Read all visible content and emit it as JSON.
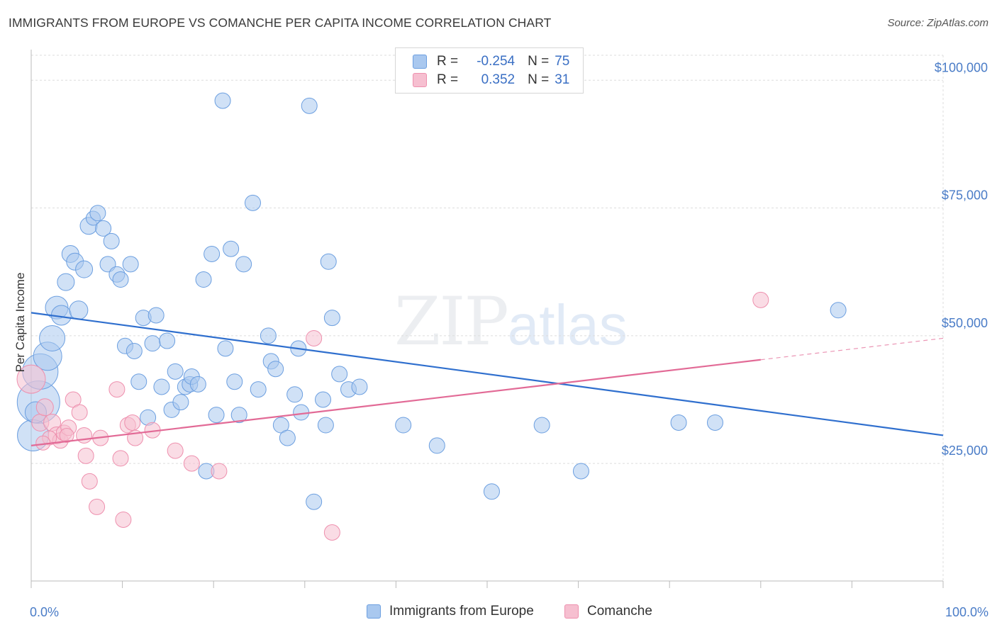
{
  "header": {
    "title": "IMMIGRANTS FROM EUROPE VS COMANCHE PER CAPITA INCOME CORRELATION CHART",
    "source": "Source: ZipAtlas.com"
  },
  "watermark": {
    "zip": "ZIP",
    "atlas": "atlas"
  },
  "legend": {
    "rows": [
      {
        "r_label": "R =",
        "r_value": "-0.254",
        "n_label": "N =",
        "n_value": "75"
      },
      {
        "r_label": "R =",
        "r_value": "0.352",
        "n_label": "N =",
        "n_value": "31"
      }
    ]
  },
  "bottom_legend": {
    "europe": "Immigrants from Europe",
    "comanche": "Comanche"
  },
  "colors": {
    "europe_fill": "#a9c8ef",
    "europe_stroke": "#6c9fe0",
    "europe_line": "#2f6fce",
    "comanche_fill": "#f6bfd0",
    "comanche_stroke": "#ee90ae",
    "comanche_line": "#e26a96",
    "tick_text": "#4a7cc7",
    "grid": "#dddddd"
  },
  "chart_data": {
    "type": "scatter",
    "title": "IMMIGRANTS FROM EUROPE VS COMANCHE PER CAPITA INCOME CORRELATION CHART",
    "xlabel": "",
    "ylabel": "Per Capita Income",
    "xlim": [
      0,
      100
    ],
    "ylim": [
      2000,
      106000
    ],
    "x_tick_labels": [
      {
        "value": 0,
        "label": "0.0%"
      },
      {
        "value": 100,
        "label": "100.0%"
      }
    ],
    "y_ticks": [
      {
        "value": 25000,
        "label": "$25,000"
      },
      {
        "value": 50000,
        "label": "$50,000"
      },
      {
        "value": 75000,
        "label": "$75,000"
      },
      {
        "value": 100000,
        "label": "$100,000"
      }
    ],
    "grid": true,
    "legend_position": "top-center",
    "series": [
      {
        "name": "Immigrants from Europe",
        "color": "#a9c8ef",
        "trend": {
          "x0": 0,
          "y0": 54500,
          "x1": 100,
          "y1": 30500,
          "dashed_from": null
        },
        "points": [
          {
            "x": 0.8,
            "y": 37000,
            "s": 3
          },
          {
            "x": 1.0,
            "y": 43000,
            "s": 2.5
          },
          {
            "x": 1.8,
            "y": 46000,
            "s": 2
          },
          {
            "x": 2.3,
            "y": 49500,
            "s": 1.8
          },
          {
            "x": 2.8,
            "y": 55500,
            "s": 1.6
          },
          {
            "x": 3.3,
            "y": 54000,
            "s": 1.4
          },
          {
            "x": 3.8,
            "y": 60500,
            "s": 1.2
          },
          {
            "x": 4.3,
            "y": 66000,
            "s": 1.2
          },
          {
            "x": 4.8,
            "y": 64500,
            "s": 1.2
          },
          {
            "x": 5.2,
            "y": 55000,
            "s": 1.3
          },
          {
            "x": 5.8,
            "y": 63000,
            "s": 1.2
          },
          {
            "x": 6.3,
            "y": 71500,
            "s": 1.2
          },
          {
            "x": 6.8,
            "y": 73000,
            "s": 1
          },
          {
            "x": 7.3,
            "y": 74000,
            "s": 1.1
          },
          {
            "x": 7.9,
            "y": 71000,
            "s": 1.1
          },
          {
            "x": 8.4,
            "y": 64000,
            "s": 1.1
          },
          {
            "x": 8.8,
            "y": 68500,
            "s": 1.1
          },
          {
            "x": 9.4,
            "y": 62000,
            "s": 1.1
          },
          {
            "x": 9.8,
            "y": 61000,
            "s": 1.1
          },
          {
            "x": 10.3,
            "y": 48000,
            "s": 1.1
          },
          {
            "x": 10.9,
            "y": 64000,
            "s": 1.1
          },
          {
            "x": 11.3,
            "y": 47000,
            "s": 1.1
          },
          {
            "x": 11.8,
            "y": 41000,
            "s": 1.1
          },
          {
            "x": 12.3,
            "y": 53500,
            "s": 1.1
          },
          {
            "x": 12.8,
            "y": 34000,
            "s": 1.1
          },
          {
            "x": 13.3,
            "y": 48500,
            "s": 1.1
          },
          {
            "x": 13.7,
            "y": 54000,
            "s": 1.1
          },
          {
            "x": 14.3,
            "y": 40000,
            "s": 1.1
          },
          {
            "x": 14.9,
            "y": 49000,
            "s": 1.1
          },
          {
            "x": 15.4,
            "y": 35500,
            "s": 1.1
          },
          {
            "x": 15.8,
            "y": 43000,
            "s": 1.1
          },
          {
            "x": 16.4,
            "y": 37000,
            "s": 1.1
          },
          {
            "x": 16.9,
            "y": 40000,
            "s": 1.1
          },
          {
            "x": 17.4,
            "y": 40500,
            "s": 1.1
          },
          {
            "x": 17.6,
            "y": 42000,
            "s": 1.1
          },
          {
            "x": 18.3,
            "y": 40500,
            "s": 1.1
          },
          {
            "x": 18.9,
            "y": 61000,
            "s": 1.1
          },
          {
            "x": 19.2,
            "y": 23500,
            "s": 1.1
          },
          {
            "x": 19.8,
            "y": 66000,
            "s": 1.1
          },
          {
            "x": 20.3,
            "y": 34500,
            "s": 1.1
          },
          {
            "x": 21.0,
            "y": 96000,
            "s": 1.1
          },
          {
            "x": 21.3,
            "y": 47500,
            "s": 1.1
          },
          {
            "x": 21.9,
            "y": 67000,
            "s": 1.1
          },
          {
            "x": 22.3,
            "y": 41000,
            "s": 1.1
          },
          {
            "x": 22.8,
            "y": 34500,
            "s": 1.1
          },
          {
            "x": 23.3,
            "y": 64000,
            "s": 1.1
          },
          {
            "x": 24.3,
            "y": 76000,
            "s": 1.1
          },
          {
            "x": 24.9,
            "y": 39500,
            "s": 1.1
          },
          {
            "x": 26.0,
            "y": 50000,
            "s": 1.1
          },
          {
            "x": 26.3,
            "y": 45000,
            "s": 1.1
          },
          {
            "x": 26.8,
            "y": 43500,
            "s": 1.1
          },
          {
            "x": 27.4,
            "y": 32500,
            "s": 1.1
          },
          {
            "x": 28.1,
            "y": 30000,
            "s": 1.1
          },
          {
            "x": 28.9,
            "y": 38500,
            "s": 1.1
          },
          {
            "x": 29.3,
            "y": 47500,
            "s": 1.1
          },
          {
            "x": 29.6,
            "y": 35000,
            "s": 1.1
          },
          {
            "x": 30.5,
            "y": 95000,
            "s": 1.1
          },
          {
            "x": 31.0,
            "y": 17500,
            "s": 1.1
          },
          {
            "x": 32.0,
            "y": 37500,
            "s": 1.1
          },
          {
            "x": 32.3,
            "y": 32500,
            "s": 1.1
          },
          {
            "x": 32.6,
            "y": 64500,
            "s": 1.1
          },
          {
            "x": 33.0,
            "y": 53500,
            "s": 1.1
          },
          {
            "x": 33.8,
            "y": 42500,
            "s": 1.1
          },
          {
            "x": 34.8,
            "y": 39500,
            "s": 1.1
          },
          {
            "x": 36.0,
            "y": 40000,
            "s": 1.1
          },
          {
            "x": 40.8,
            "y": 32500,
            "s": 1.1
          },
          {
            "x": 44.5,
            "y": 28500,
            "s": 1.1
          },
          {
            "x": 50.5,
            "y": 19500,
            "s": 1.1
          },
          {
            "x": 56.0,
            "y": 32500,
            "s": 1.1
          },
          {
            "x": 60.3,
            "y": 23500,
            "s": 1.1
          },
          {
            "x": 71.0,
            "y": 33000,
            "s": 1.1
          },
          {
            "x": 75.0,
            "y": 33000,
            "s": 1.1
          },
          {
            "x": 88.5,
            "y": 55000,
            "s": 1.1
          },
          {
            "x": 0.2,
            "y": 30500,
            "s": 2.2
          },
          {
            "x": 0.5,
            "y": 35000,
            "s": 1.5
          }
        ]
      },
      {
        "name": "Comanche",
        "color": "#f6bfd0",
        "trend": {
          "x0": 0,
          "y0": 28500,
          "x1": 100,
          "y1": 49500,
          "dashed_from": 80
        },
        "points": [
          {
            "x": 0.0,
            "y": 41500,
            "s": 2
          },
          {
            "x": 1.0,
            "y": 33000,
            "s": 1.2
          },
          {
            "x": 1.5,
            "y": 36000,
            "s": 1.2
          },
          {
            "x": 2.3,
            "y": 33000,
            "s": 1.2
          },
          {
            "x": 2.8,
            "y": 30500,
            "s": 1.2
          },
          {
            "x": 3.2,
            "y": 29500,
            "s": 1.1
          },
          {
            "x": 3.6,
            "y": 31000,
            "s": 1.1
          },
          {
            "x": 4.1,
            "y": 32000,
            "s": 1.1
          },
          {
            "x": 4.6,
            "y": 37500,
            "s": 1.1
          },
          {
            "x": 5.3,
            "y": 35000,
            "s": 1.1
          },
          {
            "x": 5.8,
            "y": 30500,
            "s": 1.1
          },
          {
            "x": 6.0,
            "y": 26500,
            "s": 1.1
          },
          {
            "x": 6.4,
            "y": 21500,
            "s": 1.1
          },
          {
            "x": 7.2,
            "y": 16500,
            "s": 1.1
          },
          {
            "x": 7.6,
            "y": 30000,
            "s": 1.1
          },
          {
            "x": 9.4,
            "y": 39500,
            "s": 1.1
          },
          {
            "x": 9.8,
            "y": 26000,
            "s": 1.1
          },
          {
            "x": 10.1,
            "y": 14000,
            "s": 1.1
          },
          {
            "x": 10.6,
            "y": 32500,
            "s": 1.1
          },
          {
            "x": 11.1,
            "y": 33000,
            "s": 1.1
          },
          {
            "x": 11.4,
            "y": 30000,
            "s": 1.1
          },
          {
            "x": 13.3,
            "y": 31500,
            "s": 1.1
          },
          {
            "x": 15.8,
            "y": 27500,
            "s": 1.1
          },
          {
            "x": 17.6,
            "y": 25000,
            "s": 1.1
          },
          {
            "x": 20.6,
            "y": 23500,
            "s": 1.1
          },
          {
            "x": 31.0,
            "y": 49500,
            "s": 1.1
          },
          {
            "x": 33.0,
            "y": 11500,
            "s": 1.1
          },
          {
            "x": 80.0,
            "y": 57000,
            "s": 1.1
          },
          {
            "x": 3.9,
            "y": 30500,
            "s": 1
          },
          {
            "x": 2.0,
            "y": 30000,
            "s": 1
          },
          {
            "x": 1.3,
            "y": 29000,
            "s": 1
          }
        ]
      }
    ]
  }
}
